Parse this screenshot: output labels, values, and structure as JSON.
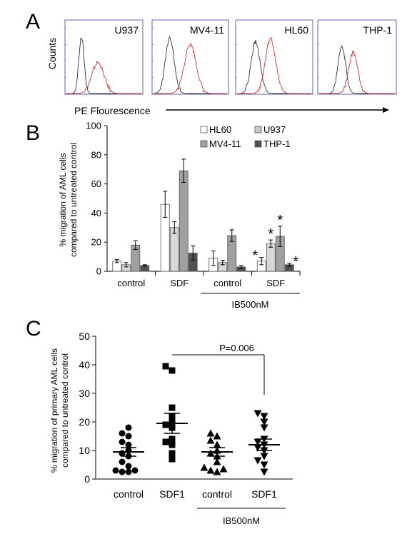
{
  "chart_data": [
    {
      "panel": "A",
      "type": "area",
      "ylabel": "Counts",
      "xlabel": "PE Flourescence",
      "panels": [
        {
          "name": "U937",
          "peaks": [
            {
              "center": 0.2,
              "height": 0.83,
              "width": 0.035,
              "color": "#333333"
            },
            {
              "center": 0.42,
              "height": 0.45,
              "width": 0.08,
              "color": "#e03030"
            }
          ]
        },
        {
          "name": "MV4-11",
          "peaks": [
            {
              "center": 0.22,
              "height": 0.8,
              "width": 0.06,
              "color": "#333333"
            },
            {
              "center": 0.5,
              "height": 0.72,
              "width": 0.08,
              "color": "#e03030"
            }
          ]
        },
        {
          "name": "HL60",
          "peaks": [
            {
              "center": 0.25,
              "height": 0.75,
              "width": 0.06,
              "color": "#333333"
            },
            {
              "center": 0.45,
              "height": 0.8,
              "width": 0.07,
              "color": "#e03030"
            }
          ]
        },
        {
          "name": "THP-1",
          "peaks": [
            {
              "center": 0.3,
              "height": 0.7,
              "width": 0.05,
              "color": "#333333"
            },
            {
              "center": 0.45,
              "height": 0.6,
              "width": 0.06,
              "color": "#e03030"
            }
          ]
        }
      ]
    },
    {
      "panel": "B",
      "type": "bar",
      "ylabel_lines": [
        "% migration of AML  cells",
        "compared to untreated control"
      ],
      "ylim": [
        0,
        100
      ],
      "yticks": [
        0,
        20,
        40,
        60,
        80,
        100
      ],
      "categories": [
        "control",
        "SDF",
        "control",
        "SDF"
      ],
      "group_label": "IB500nM",
      "legend": [
        {
          "name": "HL60",
          "color": "#ffffff"
        },
        {
          "name": "U937",
          "color": "#c8c8c8"
        },
        {
          "name": "MV4-11",
          "color": "#a0a0a0"
        },
        {
          "name": "THP-1",
          "color": "#505050"
        }
      ],
      "series": [
        {
          "name": "HL60",
          "color": "#ffffff",
          "values": [
            7,
            46,
            9,
            7
          ],
          "errors": [
            1,
            9,
            5,
            2.5
          ]
        },
        {
          "name": "U937",
          "color": "#d8d8d8",
          "values": [
            4.5,
            30,
            6,
            19
          ],
          "errors": [
            1.5,
            4,
            1.5,
            2.5
          ]
        },
        {
          "name": "MV4-11",
          "color": "#a0a0a0",
          "values": [
            18,
            69,
            24.5,
            24
          ],
          "errors": [
            3,
            8,
            4,
            7
          ]
        },
        {
          "name": "THP-1",
          "color": "#505050",
          "values": [
            4,
            12.5,
            3,
            4.5
          ],
          "errors": [
            0.5,
            5,
            1,
            1
          ]
        }
      ],
      "significance": [
        {
          "group": 3,
          "series": 0,
          "label": "*"
        },
        {
          "group": 3,
          "series": 1,
          "label": "*"
        },
        {
          "group": 3,
          "series": 2,
          "label": "*"
        },
        {
          "group": 3,
          "series": 3,
          "label": "*"
        }
      ]
    },
    {
      "panel": "C",
      "type": "scatter",
      "ylabel_lines": [
        "% migration of primary AML cells",
        "compared to untreated control"
      ],
      "ylim": [
        0,
        50
      ],
      "yticks": [
        0,
        10,
        20,
        30,
        40,
        50
      ],
      "categories": [
        "control",
        "SDF1",
        "control",
        "SDF1"
      ],
      "group_label": "IB500nM",
      "pvalue_label": "P=0.006",
      "groups": [
        {
          "name": "control",
          "marker": "circle",
          "mean": 9.5,
          "sem": 1.5,
          "points": [
            2.5,
            2.5,
            3,
            3,
            4.5,
            6,
            8,
            9,
            10,
            12,
            13,
            15,
            16,
            18
          ]
        },
        {
          "name": "SDF1",
          "marker": "square",
          "mean": 19.5,
          "sem": 3.5,
          "points": [
            7,
            9,
            12,
            13,
            14,
            18,
            19,
            20,
            22,
            25,
            38,
            39.5
          ]
        },
        {
          "name": "control",
          "marker": "triangle",
          "mean": 9.5,
          "sem": 1.5,
          "points": [
            2.5,
            3,
            3.5,
            4,
            6,
            8,
            9,
            10,
            12,
            13.5,
            15,
            16
          ]
        },
        {
          "name": "SDF1",
          "marker": "triangle-down",
          "mean": 12,
          "sem": 2,
          "points": [
            2.5,
            5,
            6.5,
            8,
            10,
            11,
            12,
            13,
            14,
            18,
            20,
            22,
            23
          ]
        }
      ]
    }
  ],
  "labels": {
    "panel_a": "A",
    "panel_b": "B",
    "panel_c": "C"
  }
}
